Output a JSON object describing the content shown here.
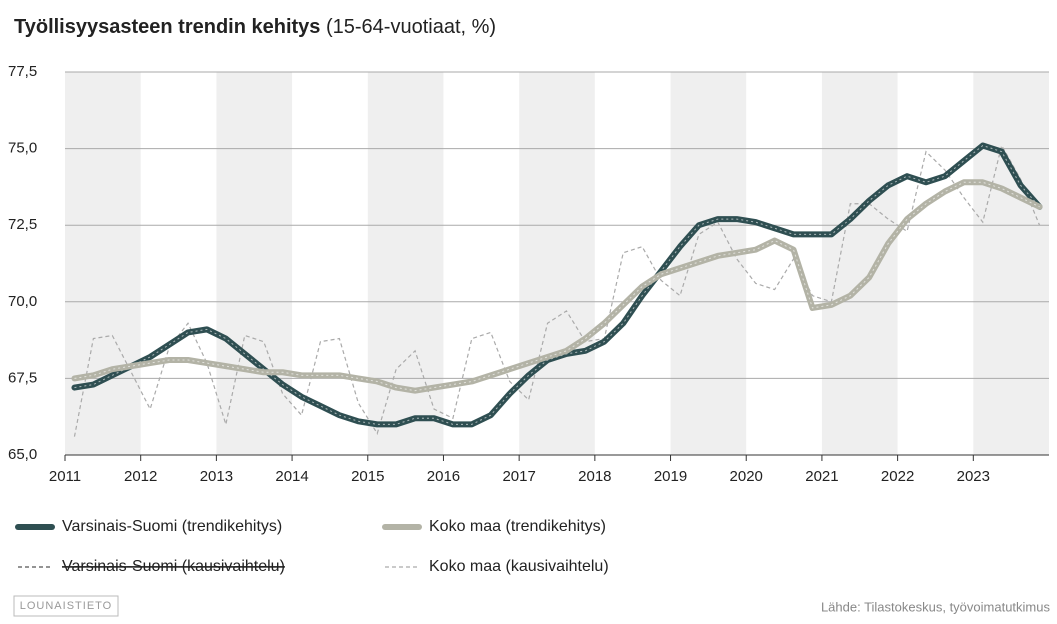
{
  "chart_data": {
    "type": "line",
    "title": "Työllisyysasteen trendin kehitys",
    "subtitle": "(15-64-vuotiaat, %)",
    "source": "Lähde: Tilastokeskus, työvoimatutkimus",
    "logo": "LOUNAISTIETO",
    "xlim": [
      2011,
      2024
    ],
    "xticks": [
      2011,
      2012,
      2013,
      2014,
      2015,
      2016,
      2017,
      2018,
      2019,
      2020,
      2021,
      2022,
      2023
    ],
    "ylim": [
      65,
      77.5
    ],
    "yticks": [
      {
        "value": 65,
        "label": "65,0"
      },
      {
        "value": 67.5,
        "label": "67,5"
      },
      {
        "value": 70,
        "label": "70,0"
      },
      {
        "value": 72.5,
        "label": "72,5"
      },
      {
        "value": 75,
        "label": "75,0"
      },
      {
        "value": 77.5,
        "label": "77,5"
      }
    ],
    "grid": true,
    "x": [
      2011.125,
      2011.375,
      2011.625,
      2011.875,
      2012.125,
      2012.375,
      2012.625,
      2012.875,
      2013.125,
      2013.375,
      2013.625,
      2013.875,
      2014.125,
      2014.375,
      2014.625,
      2014.875,
      2015.125,
      2015.375,
      2015.625,
      2015.875,
      2016.125,
      2016.375,
      2016.625,
      2016.875,
      2017.125,
      2017.375,
      2017.625,
      2017.875,
      2018.125,
      2018.375,
      2018.625,
      2018.875,
      2019.125,
      2019.375,
      2019.625,
      2019.875,
      2020.125,
      2020.375,
      2020.625,
      2020.875,
      2021.125,
      2021.375,
      2021.625,
      2021.875,
      2022.125,
      2022.375,
      2022.625,
      2022.875,
      2023.125,
      2023.375,
      2023.625,
      2023.875
    ],
    "series": [
      {
        "name": "Varsinais-Suomi (trendikehitys)",
        "color": "#2f4f52",
        "style": "trend",
        "values": [
          67.2,
          67.3,
          67.6,
          67.9,
          68.2,
          68.6,
          69.0,
          69.1,
          68.8,
          68.3,
          67.8,
          67.3,
          66.9,
          66.6,
          66.3,
          66.1,
          66.0,
          66.0,
          66.2,
          66.2,
          66.0,
          66.0,
          66.3,
          67.0,
          67.6,
          68.1,
          68.3,
          68.4,
          68.7,
          69.3,
          70.2,
          71.0,
          71.8,
          72.5,
          72.7,
          72.7,
          72.6,
          72.4,
          72.2,
          72.2,
          72.2,
          72.7,
          73.3,
          73.8,
          74.1,
          73.9,
          74.1,
          74.6,
          75.1,
          74.9,
          73.8,
          73.1
        ]
      },
      {
        "name": "Koko maa (trendikehitys)",
        "color": "#b3b3a6",
        "style": "trend",
        "values": [
          67.5,
          67.6,
          67.8,
          67.9,
          68.0,
          68.1,
          68.1,
          68.0,
          67.9,
          67.8,
          67.7,
          67.7,
          67.6,
          67.6,
          67.6,
          67.5,
          67.4,
          67.2,
          67.1,
          67.2,
          67.3,
          67.4,
          67.6,
          67.8,
          68.0,
          68.2,
          68.4,
          68.8,
          69.3,
          69.9,
          70.5,
          70.9,
          71.1,
          71.3,
          71.5,
          71.6,
          71.7,
          72.0,
          71.7,
          69.8,
          69.9,
          70.2,
          70.8,
          71.9,
          72.7,
          73.2,
          73.6,
          73.9,
          73.9,
          73.7,
          73.4,
          73.1
        ]
      },
      {
        "name": "Varsinais-Suomi (kausivaihtelu)",
        "color": "#555555",
        "style": "seasonal",
        "hidden": true,
        "values": [
          null,
          null,
          null,
          null,
          null,
          null,
          null,
          null,
          null,
          null,
          null,
          null,
          null,
          null,
          null,
          null,
          null,
          null,
          null,
          null,
          null,
          null,
          null,
          null,
          null,
          null,
          null,
          null,
          null,
          null,
          null,
          null,
          null,
          null,
          null,
          null,
          null,
          null,
          null,
          null,
          null,
          null,
          null,
          null,
          null,
          null,
          null,
          null,
          null,
          null,
          null,
          null
        ]
      },
      {
        "name": "Koko maa (kausivaihtelu)",
        "color": "#aaaaaa",
        "style": "seasonal",
        "values": [
          65.6,
          68.8,
          68.9,
          67.7,
          66.5,
          68.5,
          69.3,
          68.0,
          66.0,
          68.9,
          68.7,
          67.0,
          66.3,
          68.7,
          68.8,
          66.7,
          65.7,
          67.8,
          68.4,
          66.5,
          66.2,
          68.8,
          69.0,
          67.4,
          66.8,
          69.3,
          69.7,
          68.7,
          68.8,
          71.6,
          71.8,
          70.7,
          70.2,
          72.2,
          72.6,
          71.4,
          70.6,
          70.4,
          71.4,
          70.2,
          70.0,
          73.2,
          73.2,
          72.7,
          72.3,
          74.9,
          74.3,
          73.4,
          72.6,
          75.1,
          74.0,
          72.5
        ]
      }
    ]
  }
}
